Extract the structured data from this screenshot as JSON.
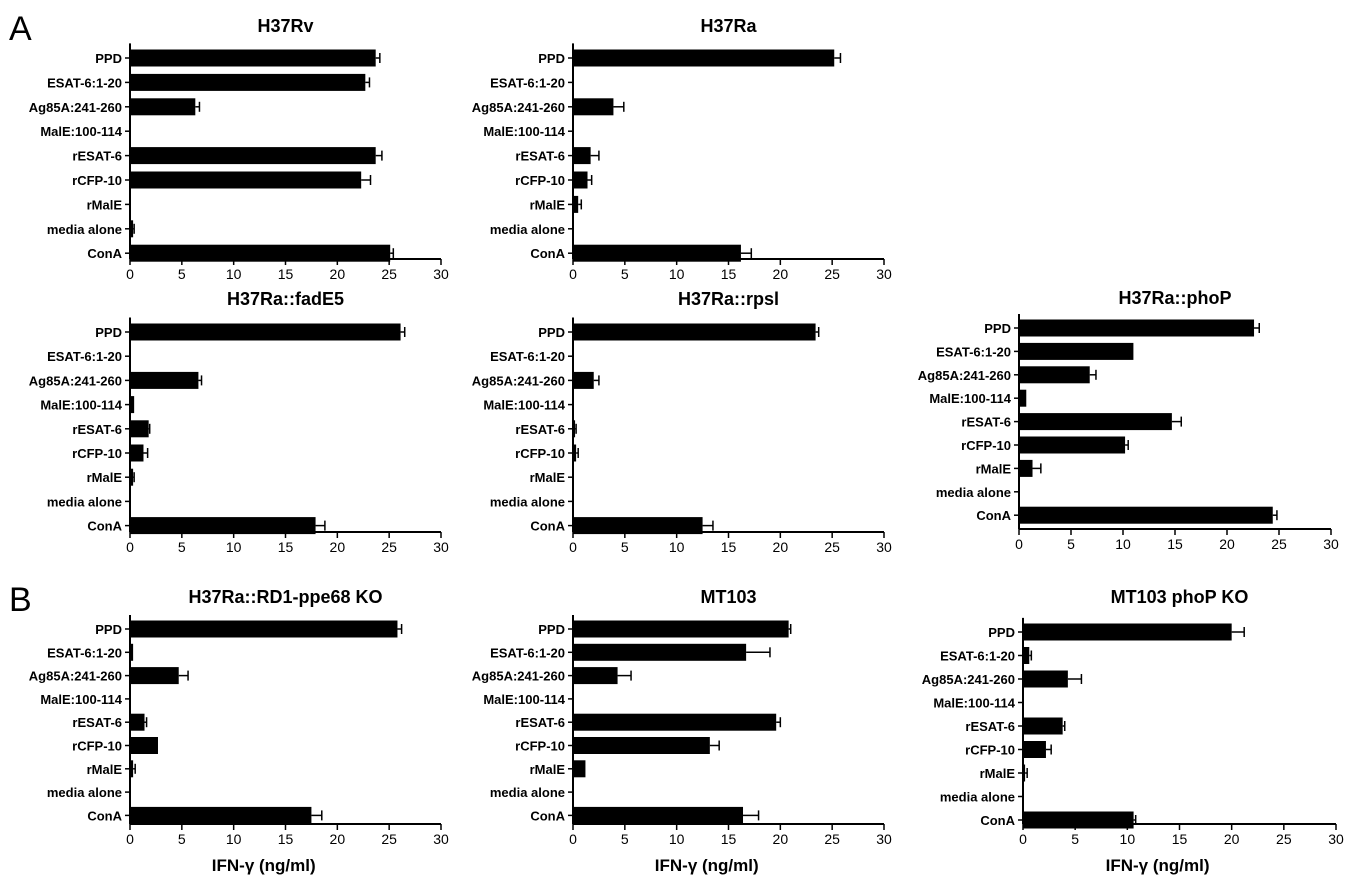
{
  "panel_labels": {
    "a": "A",
    "b": "B"
  },
  "colors": {
    "bar": "#000000",
    "axis": "#000000",
    "background": "#ffffff"
  },
  "shared_categories": [
    "PPD",
    "ESAT-6:1-20",
    "Ag85A:241-260",
    "MalE:100-114",
    "rESAT-6",
    "rCFP-10",
    "rMalE",
    "media alone",
    "ConA"
  ],
  "shared_ticks": [
    "0",
    "5",
    "10",
    "15",
    "20",
    "25",
    "30"
  ],
  "chart_data": [
    {
      "type": "bar",
      "orientation": "horizontal",
      "title": "H37Rv",
      "xlabel": "",
      "xlim": [
        0,
        30
      ],
      "categories": [
        "PPD",
        "ESAT-6:1-20",
        "Ag85A:241-260",
        "MalE:100-114",
        "rESAT-6",
        "rCFP-10",
        "rMalE",
        "media alone",
        "ConA"
      ],
      "values": [
        23.7,
        22.7,
        6.3,
        0,
        23.7,
        22.3,
        0,
        0.3,
        25.1
      ],
      "errors": [
        0.4,
        0.4,
        0.4,
        0,
        0.6,
        0.9,
        0,
        0.1,
        0.3
      ],
      "grid": false
    },
    {
      "type": "bar",
      "orientation": "horizontal",
      "title": "H37Ra",
      "xlabel": "",
      "xlim": [
        0,
        30
      ],
      "categories": [
        "PPD",
        "ESAT-6:1-20",
        "Ag85A:241-260",
        "MalE:100-114",
        "rESAT-6",
        "rCFP-10",
        "rMalE",
        "media alone",
        "ConA"
      ],
      "values": [
        25.2,
        0,
        3.9,
        0,
        1.7,
        1.4,
        0.5,
        0,
        16.2
      ],
      "errors": [
        0.6,
        0,
        1.0,
        0,
        0.8,
        0.4,
        0.3,
        0,
        1.0
      ],
      "grid": false
    },
    {
      "type": "bar",
      "orientation": "horizontal",
      "title": "H37Ra::fadE5",
      "xlabel": "",
      "xlim": [
        0,
        30
      ],
      "categories": [
        "PPD",
        "ESAT-6:1-20",
        "Ag85A:241-260",
        "MalE:100-114",
        "rESAT-6",
        "rCFP-10",
        "rMalE",
        "media alone",
        "ConA"
      ],
      "values": [
        26.1,
        0,
        6.6,
        0.4,
        1.8,
        1.3,
        0.3,
        0,
        17.9
      ],
      "errors": [
        0.4,
        0,
        0.3,
        0,
        0.1,
        0.4,
        0.1,
        0,
        0.9
      ],
      "grid": false
    },
    {
      "type": "bar",
      "orientation": "horizontal",
      "title": "H37Ra::rpsl",
      "xlabel": "",
      "xlim": [
        0,
        30
      ],
      "categories": [
        "PPD",
        "ESAT-6:1-20",
        "Ag85A:241-260",
        "MalE:100-114",
        "rESAT-6",
        "rCFP-10",
        "rMalE",
        "media alone",
        "ConA"
      ],
      "values": [
        23.4,
        0,
        2.0,
        0,
        0.2,
        0.3,
        0,
        0,
        12.5
      ],
      "errors": [
        0.3,
        0,
        0.5,
        0,
        0.1,
        0.2,
        0,
        0,
        1.0
      ],
      "grid": false
    },
    {
      "type": "bar",
      "orientation": "horizontal",
      "title": "H37Ra::phoP",
      "xlabel": "",
      "xlim": [
        0,
        30
      ],
      "categories": [
        "PPD",
        "ESAT-6:1-20",
        "Ag85A:241-260",
        "MalE:100-114",
        "rESAT-6",
        "rCFP-10",
        "rMalE",
        "media alone",
        "ConA"
      ],
      "values": [
        22.6,
        11.0,
        6.8,
        0.7,
        14.7,
        10.2,
        1.3,
        0,
        24.4
      ],
      "errors": [
        0.5,
        0,
        0.6,
        0,
        0.9,
        0.3,
        0.8,
        0,
        0.4
      ],
      "grid": false
    },
    {
      "type": "bar",
      "orientation": "horizontal",
      "title": "H37Ra::RD1-ppe68 KO",
      "xlabel": "IFN-γ  (ng/ml)",
      "xlim": [
        0,
        30
      ],
      "categories": [
        "PPD",
        "ESAT-6:1-20",
        "Ag85A:241-260",
        "MalE:100-114",
        "rESAT-6",
        "rCFP-10",
        "rMalE",
        "media alone",
        "ConA"
      ],
      "values": [
        25.8,
        0.3,
        4.7,
        0,
        1.4,
        2.7,
        0.3,
        0,
        17.5
      ],
      "errors": [
        0.4,
        0,
        0.9,
        0,
        0.2,
        0,
        0.2,
        0,
        1.0
      ],
      "grid": false
    },
    {
      "type": "bar",
      "orientation": "horizontal",
      "title": "MT103",
      "xlabel": "IFN-γ  (ng/ml)",
      "xlim": [
        0,
        30
      ],
      "categories": [
        "PPD",
        "ESAT-6:1-20",
        "Ag85A:241-260",
        "MalE:100-114",
        "rESAT-6",
        "rCFP-10",
        "rMalE",
        "media alone",
        "ConA"
      ],
      "values": [
        20.8,
        16.7,
        4.3,
        0,
        19.6,
        13.2,
        1.2,
        0,
        16.4
      ],
      "errors": [
        0.2,
        2.3,
        1.3,
        0,
        0.4,
        0.9,
        0,
        0,
        1.5
      ],
      "grid": false
    },
    {
      "type": "bar",
      "orientation": "horizontal",
      "title": "MT103 phoP KO",
      "xlabel": "IFN-γ  (ng/ml)",
      "xlim": [
        0,
        30
      ],
      "categories": [
        "PPD",
        "ESAT-6:1-20",
        "Ag85A:241-260",
        "MalE:100-114",
        "rESAT-6",
        "rCFP-10",
        "rMalE",
        "media alone",
        "ConA"
      ],
      "values": [
        20.0,
        0.6,
        4.3,
        0,
        3.8,
        2.2,
        0.2,
        0,
        10.6
      ],
      "errors": [
        1.2,
        0.2,
        1.3,
        0,
        0.2,
        0.5,
        0.2,
        0,
        0.2
      ],
      "grid": false
    }
  ]
}
